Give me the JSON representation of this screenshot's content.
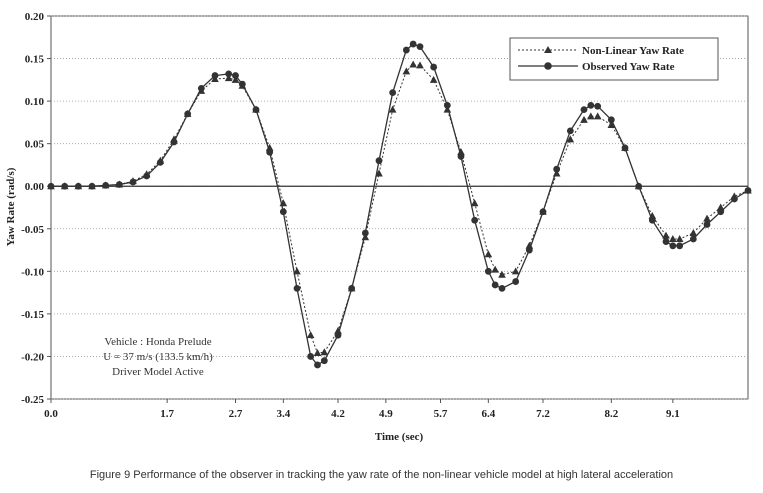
{
  "chart_data": {
    "type": "line",
    "xlabel": "Time (sec)",
    "ylabel": "Yaw Rate (rad/s)",
    "xlim": [
      0,
      10.2
    ],
    "ylim": [
      -0.25,
      0.2
    ],
    "x_ticks": [
      "0.0",
      "1.7",
      "2.7",
      "3.4",
      "4.2",
      "4.9",
      "5.7",
      "6.4",
      "7.2",
      "8.2",
      "9.1"
    ],
    "y_ticks": [
      "0.20",
      "0.15",
      "0.10",
      "0.05",
      "0.00",
      "-0.05",
      "-0.10",
      "-0.15",
      "-0.20",
      "-0.25"
    ],
    "legend_position": "top-right",
    "annotation_lines": [
      "Vehicle : Honda Prelude",
      "U = 37 m/s (133.5 km/h)",
      "Driver Model Active"
    ],
    "series": [
      {
        "name": "Non-Linear Yaw Rate",
        "marker": "triangle",
        "line_style": "dotted",
        "x": [
          0.0,
          0.2,
          0.4,
          0.6,
          0.8,
          1.0,
          1.2,
          1.4,
          1.6,
          1.8,
          2.0,
          2.2,
          2.4,
          2.6,
          2.7,
          2.8,
          3.0,
          3.2,
          3.4,
          3.6,
          3.8,
          3.9,
          4.0,
          4.2,
          4.4,
          4.6,
          4.8,
          5.0,
          5.2,
          5.3,
          5.4,
          5.6,
          5.8,
          6.0,
          6.2,
          6.4,
          6.5,
          6.6,
          6.8,
          7.0,
          7.2,
          7.4,
          7.6,
          7.8,
          7.9,
          8.0,
          8.2,
          8.4,
          8.6,
          8.8,
          9.0,
          9.1,
          9.2,
          9.4,
          9.6,
          9.8,
          10.0,
          10.2
        ],
        "values": [
          0.0,
          0.0,
          0.0,
          0.0,
          0.001,
          0.002,
          0.006,
          0.014,
          0.03,
          0.055,
          0.085,
          0.112,
          0.126,
          0.127,
          0.125,
          0.118,
          0.09,
          0.045,
          -0.02,
          -0.1,
          -0.175,
          -0.196,
          -0.195,
          -0.17,
          -0.12,
          -0.06,
          0.015,
          0.09,
          0.135,
          0.143,
          0.142,
          0.125,
          0.09,
          0.04,
          -0.02,
          -0.08,
          -0.098,
          -0.104,
          -0.1,
          -0.07,
          -0.03,
          0.015,
          0.055,
          0.078,
          0.082,
          0.082,
          0.072,
          0.045,
          0.0,
          -0.035,
          -0.058,
          -0.062,
          -0.062,
          -0.055,
          -0.038,
          -0.025,
          -0.012,
          -0.005
        ]
      },
      {
        "name": "Observed Yaw Rate",
        "marker": "circle",
        "line_style": "solid",
        "x": [
          0.0,
          0.2,
          0.4,
          0.6,
          0.8,
          1.0,
          1.2,
          1.4,
          1.6,
          1.8,
          2.0,
          2.2,
          2.4,
          2.6,
          2.7,
          2.8,
          3.0,
          3.2,
          3.4,
          3.6,
          3.8,
          3.9,
          4.0,
          4.2,
          4.4,
          4.6,
          4.8,
          5.0,
          5.2,
          5.3,
          5.4,
          5.6,
          5.8,
          6.0,
          6.2,
          6.4,
          6.5,
          6.6,
          6.8,
          7.0,
          7.2,
          7.4,
          7.6,
          7.8,
          7.9,
          8.0,
          8.2,
          8.4,
          8.6,
          8.8,
          9.0,
          9.1,
          9.2,
          9.4,
          9.6,
          9.8,
          10.0,
          10.2
        ],
        "values": [
          0.0,
          0.0,
          0.0,
          0.0,
          0.001,
          0.002,
          0.005,
          0.012,
          0.028,
          0.052,
          0.085,
          0.115,
          0.13,
          0.132,
          0.13,
          0.12,
          0.09,
          0.04,
          -0.03,
          -0.12,
          -0.2,
          -0.21,
          -0.205,
          -0.175,
          -0.12,
          -0.055,
          0.03,
          0.11,
          0.16,
          0.167,
          0.164,
          0.14,
          0.095,
          0.035,
          -0.04,
          -0.1,
          -0.116,
          -0.12,
          -0.112,
          -0.075,
          -0.03,
          0.02,
          0.065,
          0.09,
          0.095,
          0.094,
          0.078,
          0.045,
          0.0,
          -0.04,
          -0.065,
          -0.07,
          -0.07,
          -0.062,
          -0.045,
          -0.03,
          -0.015,
          -0.005
        ]
      }
    ]
  },
  "caption": "Figure 9  Performance of the observer in tracking the yaw rate of the non-linear vehicle model at high lateral acceleration"
}
